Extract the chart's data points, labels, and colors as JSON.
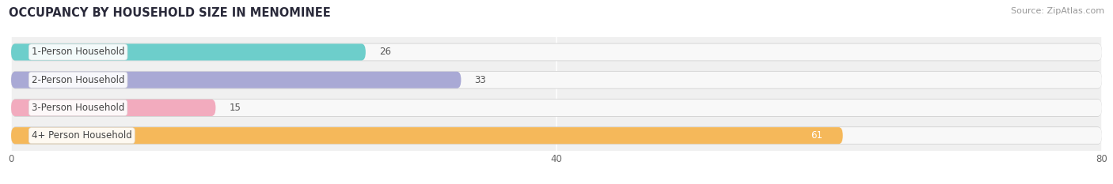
{
  "title": "OCCUPANCY BY HOUSEHOLD SIZE IN MENOMINEE",
  "source": "Source: ZipAtlas.com",
  "categories": [
    "1-Person Household",
    "2-Person Household",
    "3-Person Household",
    "4+ Person Household"
  ],
  "values": [
    26,
    33,
    15,
    61
  ],
  "bar_colors": [
    "#6dcecb",
    "#a9a9d5",
    "#f2abbe",
    "#f5b85a"
  ],
  "xlim": [
    0,
    80
  ],
  "xticks": [
    0,
    40,
    80
  ],
  "figsize": [
    14.06,
    2.33
  ],
  "dpi": 100,
  "title_fontsize": 10.5,
  "label_fontsize": 8.5,
  "value_fontsize": 8.5,
  "source_fontsize": 8,
  "bar_height": 0.62,
  "bg_color": "#ffffff",
  "plot_bg_color": "#f0f0f0",
  "bar_bg_color": "#e0e0e0"
}
